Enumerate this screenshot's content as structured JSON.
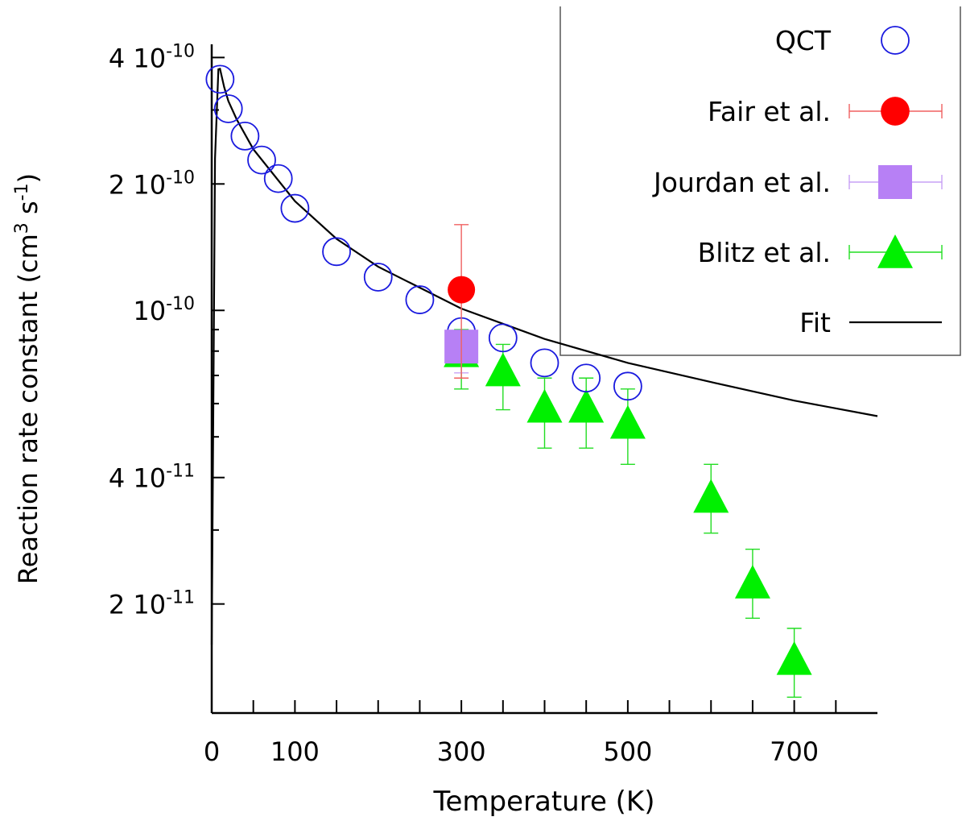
{
  "chart_data": {
    "type": "scatter",
    "xlabel": "Temperature (K)",
    "ylabel": "Reaction rate constant (cm³ s⁻¹)",
    "ylabel_parts": {
      "base": "Reaction rate constant (cm",
      "sup1": "3",
      "mid": " s",
      "sup2": "-1",
      "end": ")"
    },
    "xlim": [
      0,
      800
    ],
    "ylim": [
      1.1e-11,
      4.3e-10
    ],
    "yscale": "log",
    "x_tick_labels": [
      {
        "value": 0,
        "label": "0"
      },
      {
        "value": 100,
        "label": "100"
      },
      {
        "value": 300,
        "label": "300"
      },
      {
        "value": 500,
        "label": "500"
      },
      {
        "value": 700,
        "label": "700"
      }
    ],
    "x_minor_ticks": [
      50,
      150,
      200,
      250,
      350,
      400,
      450,
      550,
      600,
      650,
      750
    ],
    "y_tick_labels": [
      {
        "value": 4e-10,
        "mantissa": "4 10",
        "exponent": "-10"
      },
      {
        "value": 2e-10,
        "mantissa": "2 10",
        "exponent": "-10"
      },
      {
        "value": 1e-10,
        "mantissa": "10",
        "exponent": "-10"
      },
      {
        "value": 4e-11,
        "mantissa": "4 10",
        "exponent": "-11"
      },
      {
        "value": 2e-11,
        "mantissa": "2 10",
        "exponent": "-11"
      }
    ],
    "y_minor_ticks": [
      3e-10,
      9e-11,
      8e-11,
      7e-11,
      6e-11,
      5e-11,
      3e-11
    ],
    "legend_position": "top-right",
    "series": [
      {
        "name": "QCT",
        "marker": "open-circle",
        "color": "#1a1adf",
        "x": [
          10,
          20,
          40,
          60,
          80,
          100,
          150,
          200,
          250,
          300,
          350,
          400,
          450,
          500
        ],
        "y": [
          3.55e-10,
          3.02e-10,
          2.6e-10,
          2.28e-10,
          2.06e-10,
          1.75e-10,
          1.38e-10,
          1.2e-10,
          1.06e-10,
          8.9e-11,
          8.6e-11,
          7.5e-11,
          6.9e-11,
          6.6e-11
        ]
      },
      {
        "name": "Fair et al.",
        "marker": "filled-circle",
        "color": "#ff0000",
        "bar_color": "#f06060",
        "x": [
          300
        ],
        "y": [
          1.12e-10
        ],
        "err_low": [
          6.9e-11
        ],
        "err_high": [
          1.6e-10
        ]
      },
      {
        "name": "Jourdan et al.",
        "marker": "filled-square",
        "color": "#b780f5",
        "bar_color": "#c7a0f5",
        "x": [
          300
        ],
        "y": [
          8.2e-11
        ],
        "err_low": [
          7.1e-11
        ],
        "err_high": [
          8.9e-11
        ]
      },
      {
        "name": "Blitz et al.",
        "marker": "filled-triangle",
        "color": "#00f000",
        "bar_color": "#22dd22",
        "x": [
          300,
          350,
          400,
          450,
          500,
          600,
          650,
          700
        ],
        "y": [
          8e-11,
          7.2e-11,
          5.9e-11,
          5.9e-11,
          5.4e-11,
          3.6e-11,
          2.25e-11,
          1.48e-11
        ],
        "err_low": [
          6.5e-11,
          5.8e-11,
          4.7e-11,
          4.7e-11,
          4.3e-11,
          2.95e-11,
          1.85e-11,
          1.2e-11
        ],
        "err_high": [
          9e-11,
          8.3e-11,
          6.9e-11,
          6.9e-11,
          6.5e-11,
          4.3e-11,
          2.7e-11,
          1.75e-11
        ]
      },
      {
        "name": "Fit",
        "marker": "line",
        "color": "#000000",
        "x": [
          0,
          4,
          8,
          10,
          15,
          20,
          30,
          50,
          100,
          150,
          200,
          300,
          400,
          500,
          600,
          700,
          800
        ],
        "y": [
          1.6e-11,
          2.3e-10,
          3.75e-10,
          3.76e-10,
          3.4e-10,
          3.15e-10,
          2.85e-10,
          2.42e-10,
          1.82e-10,
          1.48e-10,
          1.27e-10,
          1.01e-10,
          8.55e-11,
          7.5e-11,
          6.75e-11,
          6.1e-11,
          5.6e-11
        ]
      }
    ]
  }
}
